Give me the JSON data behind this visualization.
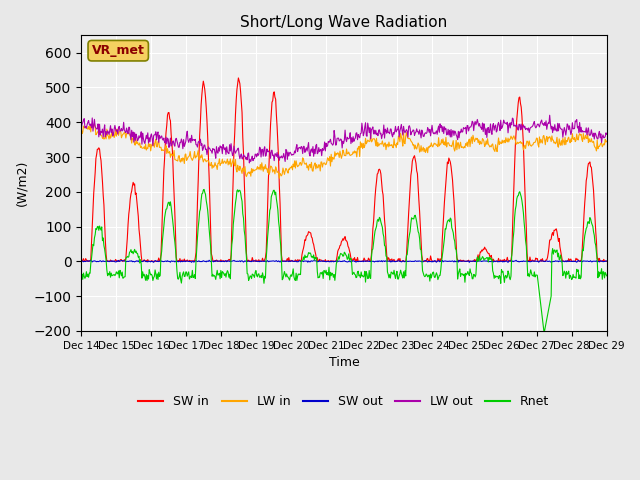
{
  "title": "Short/Long Wave Radiation",
  "xlabel": "Time",
  "ylabel": "(W/m2)",
  "ylim": [
    -200,
    650
  ],
  "yticks": [
    -200,
    -100,
    0,
    100,
    200,
    300,
    400,
    500,
    600
  ],
  "background_color": "#e8e8e8",
  "plot_bg_color": "#f0f0f0",
  "colors": {
    "SW_in": "#ff0000",
    "LW_in": "#ffa500",
    "SW_out": "#0000cc",
    "LW_out": "#aa00aa",
    "Rnet": "#00cc00"
  },
  "legend_labels": [
    "SW in",
    "LW in",
    "SW out",
    "LW out",
    "Rnet"
  ],
  "date_labels": [
    "Dec 14",
    "Dec 15",
    "Dec 16",
    "Dec 17",
    "Dec 18",
    "Dec 19",
    "Dec 20",
    "Dec 21",
    "Dec 22",
    "Dec 23",
    "Dec 24",
    "Dec 25",
    "Dec 26",
    "Dec 27",
    "Dec 28",
    "Dec 29"
  ],
  "station_label": "VR_met",
  "n_days": 15,
  "n_points_per_day": 48
}
